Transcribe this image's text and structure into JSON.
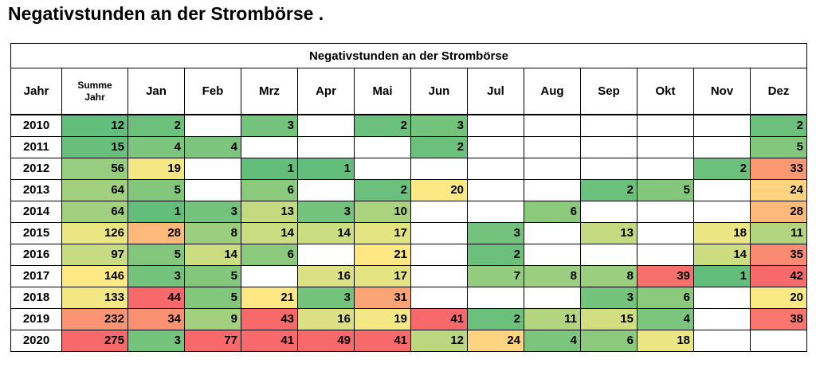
{
  "page_title": "Negativstunden an der Strombörse .",
  "chart_data": {
    "type": "table",
    "title": "Negativstunden an der Strombörse",
    "columns": [
      "Jahr",
      "Summe Jahr",
      "Jan",
      "Feb",
      "Mrz",
      "Apr",
      "Mai",
      "Jun",
      "Jul",
      "Aug",
      "Sep",
      "Okt",
      "Nov",
      "Dez"
    ],
    "rows": [
      {
        "year": "2010",
        "values": [
          12,
          2,
          null,
          3,
          null,
          2,
          3,
          null,
          null,
          null,
          null,
          null,
          2
        ]
      },
      {
        "year": "2011",
        "values": [
          15,
          4,
          4,
          null,
          null,
          null,
          2,
          null,
          null,
          null,
          null,
          null,
          5
        ]
      },
      {
        "year": "2012",
        "values": [
          56,
          19,
          null,
          1,
          1,
          null,
          null,
          null,
          null,
          null,
          null,
          2,
          33
        ]
      },
      {
        "year": "2013",
        "values": [
          64,
          5,
          null,
          6,
          null,
          2,
          20,
          null,
          null,
          2,
          5,
          null,
          24
        ]
      },
      {
        "year": "2014",
        "values": [
          64,
          1,
          3,
          13,
          3,
          10,
          null,
          null,
          6,
          null,
          null,
          null,
          28
        ]
      },
      {
        "year": "2015",
        "values": [
          126,
          28,
          8,
          14,
          14,
          17,
          null,
          3,
          null,
          13,
          null,
          18,
          11
        ]
      },
      {
        "year": "2016",
        "values": [
          97,
          5,
          14,
          6,
          null,
          21,
          null,
          2,
          null,
          null,
          null,
          14,
          35
        ]
      },
      {
        "year": "2017",
        "values": [
          146,
          3,
          5,
          null,
          16,
          17,
          null,
          7,
          8,
          8,
          39,
          1,
          42
        ]
      },
      {
        "year": "2018",
        "values": [
          133,
          44,
          5,
          21,
          3,
          31,
          null,
          null,
          null,
          3,
          6,
          null,
          20
        ]
      },
      {
        "year": "2019",
        "values": [
          232,
          34,
          9,
          43,
          16,
          19,
          41,
          2,
          11,
          15,
          4,
          null,
          38
        ]
      },
      {
        "year": "2020",
        "values": [
          275,
          3,
          77,
          41,
          49,
          41,
          12,
          24,
          4,
          6,
          18,
          null,
          null
        ]
      }
    ],
    "color_scale": {
      "low": "#63be7b",
      "mid": "#ffeb84",
      "high": "#f8696b"
    }
  }
}
